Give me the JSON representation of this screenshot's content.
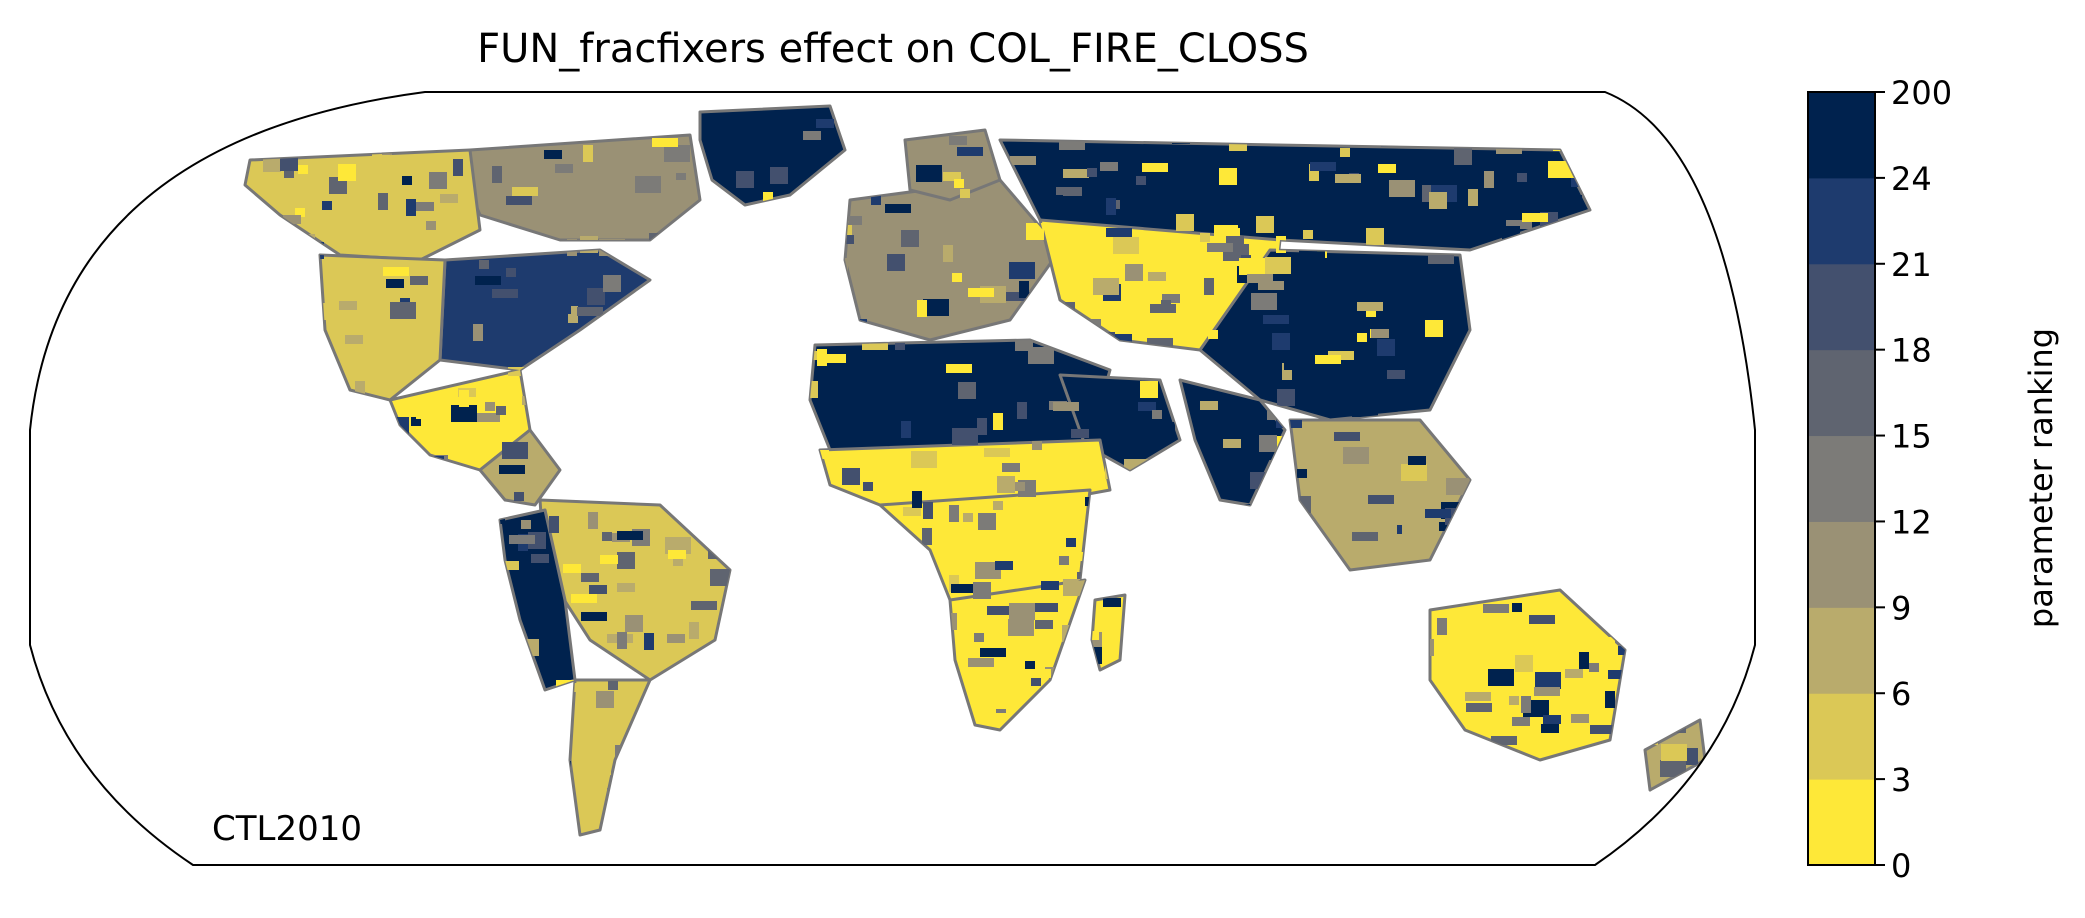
{
  "title": "FUN_fracfixers effect on COL_FIRE_CLOSS",
  "annotation": "CTL2010",
  "colorbar": {
    "label": "parameter ranking",
    "tick_labels": [
      "0",
      "3",
      "6",
      "9",
      "12",
      "15",
      "18",
      "21",
      "24",
      "200"
    ],
    "bin_colors": [
      "#fee838",
      "#dbc856",
      "#b9ab6c",
      "#9a9175",
      "#7c7b78",
      "#5f6470",
      "#43506e",
      "#1e3b6e",
      "#00224e"
    ]
  },
  "map": {
    "projection": "Robinson",
    "coastline_color": "#777777",
    "chart_data": {
      "type": "heatmap",
      "variable": "parameter ranking",
      "value_range": [
        0,
        200
      ],
      "levels": [
        0,
        3,
        6,
        9,
        12,
        15,
        18,
        21,
        24,
        200
      ]
    }
  },
  "regions": [
    {
      "name": "greenland",
      "level": 8
    },
    {
      "name": "canada-north",
      "level": 3
    },
    {
      "name": "canada-west",
      "level": 1
    },
    {
      "name": "usa-east",
      "level": 7
    },
    {
      "name": "usa-west",
      "level": 1
    },
    {
      "name": "mexico",
      "level": 0
    },
    {
      "name": "central-america",
      "level": 2
    },
    {
      "name": "amazon",
      "level": 1
    },
    {
      "name": "south-america-west",
      "level": 8
    },
    {
      "name": "patagonia",
      "level": 1
    },
    {
      "name": "sahara",
      "level": 8
    },
    {
      "name": "arabia",
      "level": 8
    },
    {
      "name": "sahel",
      "level": 0
    },
    {
      "name": "central-africa",
      "level": 0
    },
    {
      "name": "southern-africa",
      "level": 0
    },
    {
      "name": "madagascar",
      "level": 0
    },
    {
      "name": "europe",
      "level": 3
    },
    {
      "name": "scandinavia",
      "level": 3
    },
    {
      "name": "siberia",
      "level": 8
    },
    {
      "name": "central-asia",
      "level": 0
    },
    {
      "name": "china",
      "level": 8
    },
    {
      "name": "india",
      "level": 8
    },
    {
      "name": "southeast-asia",
      "level": 2
    },
    {
      "name": "australia",
      "level": 0
    },
    {
      "name": "new-zealand",
      "level": 2
    }
  ]
}
